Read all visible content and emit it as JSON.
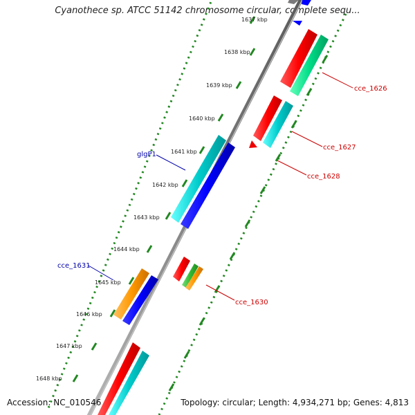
{
  "title": "Cyanothece sp. ATCC 51142 chromosome circular, complete sequ...",
  "footer": {
    "accession": "Accession: NC_010546",
    "topology": "Topology: circular; Length: 4,934,271 bp; Genes: 4,813"
  },
  "ruler": {
    "unit": "kbp",
    "ticks": [
      1637,
      1638,
      1639,
      1640,
      1641,
      1642,
      1643,
      1644,
      1645,
      1646,
      1647,
      1648
    ],
    "tick_labels": [
      "1637 kbp",
      "1638 kbp",
      "1639 kbp",
      "1640 kbp",
      "1641 kbp",
      "1642 kbp",
      "1643 kbp",
      "1644 kbp",
      "1645 kbp",
      "1646 kbp",
      "1647 kbp",
      "1648 kbp"
    ]
  },
  "colors": {
    "backbone": "#808080",
    "cds_red": "#ff0000",
    "cds_cyan": "#00cccc",
    "cds_green": "#00dd88",
    "cds_blue": "#0000ff",
    "cds_orange": "#ff9900",
    "cds_green2": "#33bb33",
    "ruler": "#228822",
    "label_red": "#cc0000",
    "label_blue": "#0000aa"
  },
  "gene_labels": [
    {
      "text": "cce_1626",
      "color": "red"
    },
    {
      "text": "cce_1627",
      "color": "red"
    },
    {
      "text": "cce_1628",
      "color": "red"
    },
    {
      "text": "glgP1",
      "color": "blue"
    },
    {
      "text": "cce_1631",
      "color": "blue"
    },
    {
      "text": "cce_1630",
      "color": "red"
    }
  ]
}
